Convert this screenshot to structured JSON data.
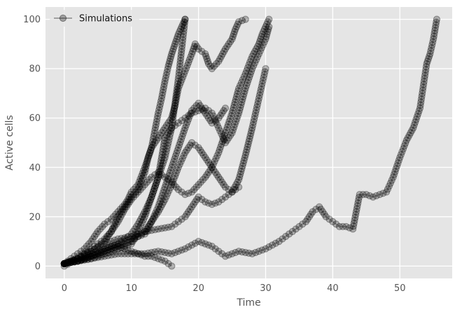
{
  "chart_data": {
    "type": "line",
    "title": "",
    "xlabel": "Time",
    "ylabel": "Active cells",
    "xlim": [
      -2.8,
      57.8
    ],
    "ylim": [
      -5,
      105
    ],
    "xticks": [
      0,
      10,
      20,
      30,
      40,
      50
    ],
    "yticks": [
      0,
      20,
      40,
      60,
      80,
      100
    ],
    "grid": true,
    "background": "#e5e5e5",
    "grid_color": "#ffffff",
    "marker": "circle",
    "marker_color": "#000000",
    "marker_alpha": 0.25,
    "legend": {
      "position": "top-left",
      "entries": [
        "Simulations"
      ]
    },
    "series": [
      {
        "x": [
          0,
          1,
          2,
          3,
          4,
          5,
          6,
          7,
          8,
          9,
          9.5,
          10,
          11,
          12,
          13,
          13.5,
          14,
          14.5,
          15,
          15.5,
          16,
          16.5,
          17,
          17.5,
          18
        ],
        "y": [
          1,
          3,
          5,
          7,
          10,
          14,
          17,
          19,
          22,
          25,
          27,
          30,
          33,
          40,
          48,
          55,
          62,
          68,
          75,
          81,
          86,
          90,
          94,
          97,
          100
        ]
      },
      {
        "x": [
          0,
          1,
          2,
          3,
          4,
          5,
          6,
          7,
          8,
          9,
          10,
          11,
          12,
          12.5,
          13,
          14,
          15,
          16,
          16.5,
          17,
          18,
          19,
          19.5,
          20,
          21,
          21.5,
          22,
          23,
          24,
          25,
          25.5,
          26,
          27
        ],
        "y": [
          1,
          2,
          3,
          5,
          6,
          8,
          10,
          14,
          20,
          24,
          28,
          31,
          38,
          44,
          48,
          52,
          56,
          60,
          65,
          72,
          79,
          86,
          90,
          88,
          86,
          82,
          80,
          83,
          88,
          92,
          96,
          99,
          100
        ]
      },
      {
        "x": [
          0,
          1,
          2,
          3,
          4,
          5,
          6,
          7,
          8,
          9,
          10,
          11,
          12,
          13,
          14,
          15,
          16,
          17,
          18,
          19,
          20,
          21,
          22,
          23,
          24,
          25,
          26,
          27,
          28,
          29,
          29.5,
          30,
          30.5
        ],
        "y": [
          1,
          2,
          3,
          5,
          7,
          9,
          11,
          14,
          18,
          23,
          27,
          30,
          33,
          36,
          38,
          36,
          34,
          31,
          29,
          30,
          33,
          36,
          40,
          46,
          54,
          62,
          72,
          78,
          85,
          90,
          94,
          97,
          100
        ]
      },
      {
        "x": [
          0,
          2,
          4,
          6,
          8,
          10,
          11,
          12,
          13,
          14,
          14.5,
          15,
          16,
          17,
          18,
          19,
          20,
          21,
          22,
          23,
          24,
          25,
          26,
          27,
          28,
          29,
          30,
          30.5
        ],
        "y": [
          0,
          3,
          5,
          7,
          9,
          13,
          17,
          22,
          28,
          36,
          44,
          52,
          56,
          58,
          60,
          62,
          63,
          64,
          62,
          56,
          50,
          54,
          62,
          72,
          80,
          86,
          92,
          97
        ]
      },
      {
        "x": [
          0,
          2,
          4,
          6,
          8,
          10,
          11,
          12,
          13,
          14,
          15,
          16,
          17,
          18,
          19,
          20,
          21,
          22,
          23,
          24,
          25,
          26,
          27,
          28,
          29,
          30
        ],
        "y": [
          1,
          2,
          4,
          6,
          8,
          10,
          12,
          14,
          18,
          22,
          27,
          33,
          40,
          46,
          50,
          48,
          44,
          40,
          36,
          32,
          30,
          35,
          45,
          56,
          68,
          80
        ]
      },
      {
        "x": [
          0,
          2,
          4,
          6,
          8,
          10,
          12,
          13,
          14,
          15,
          16,
          17,
          18,
          19,
          20,
          21,
          22,
          23,
          24
        ],
        "y": [
          1,
          2,
          4,
          7,
          9,
          11,
          13,
          18,
          24,
          32,
          40,
          48,
          56,
          63,
          66,
          62,
          58,
          60,
          64
        ]
      },
      {
        "x": [
          0,
          2,
          4,
          6,
          8,
          10,
          12,
          14,
          16,
          17,
          18,
          19,
          20,
          21,
          22,
          23,
          24,
          25,
          26
        ],
        "y": [
          1,
          3,
          6,
          9,
          11,
          12,
          14,
          15,
          16,
          18,
          20,
          24,
          28,
          26,
          25,
          26,
          28,
          30,
          32
        ]
      },
      {
        "x": [
          0,
          2,
          4,
          6,
          8,
          10,
          12,
          14,
          16,
          18,
          20,
          22,
          24,
          26,
          28,
          30,
          32,
          34,
          36,
          37,
          38,
          39,
          40,
          41,
          42,
          43,
          44,
          45,
          46,
          47,
          48,
          49,
          50,
          51,
          52,
          53,
          54,
          54.5,
          55,
          55.5
        ],
        "y": [
          1,
          2,
          3,
          4,
          5,
          5,
          5,
          6,
          5,
          7,
          10,
          8,
          4,
          6,
          5,
          7,
          10,
          14,
          18,
          22,
          24,
          20,
          18,
          16,
          16,
          15,
          29,
          29,
          28,
          29,
          30,
          36,
          44,
          51,
          56,
          64,
          82,
          86,
          92,
          100
        ]
      },
      {
        "x": [
          0,
          1,
          2,
          3,
          4,
          5,
          6,
          7,
          8,
          9,
          10,
          11,
          12,
          13,
          14,
          15,
          15.5,
          16
        ],
        "y": [
          1,
          2,
          2,
          3,
          4,
          5,
          6,
          7,
          8,
          7,
          6,
          5,
          4,
          4,
          3,
          2,
          1,
          0
        ]
      },
      {
        "x": [
          0,
          2,
          4,
          6,
          8,
          10,
          11,
          12,
          13,
          14,
          15,
          16,
          16.5,
          17,
          17.5,
          18
        ],
        "y": [
          1,
          2,
          3,
          5,
          7,
          9,
          14,
          20,
          28,
          36,
          44,
          56,
          66,
          76,
          88,
          100
        ]
      }
    ]
  }
}
